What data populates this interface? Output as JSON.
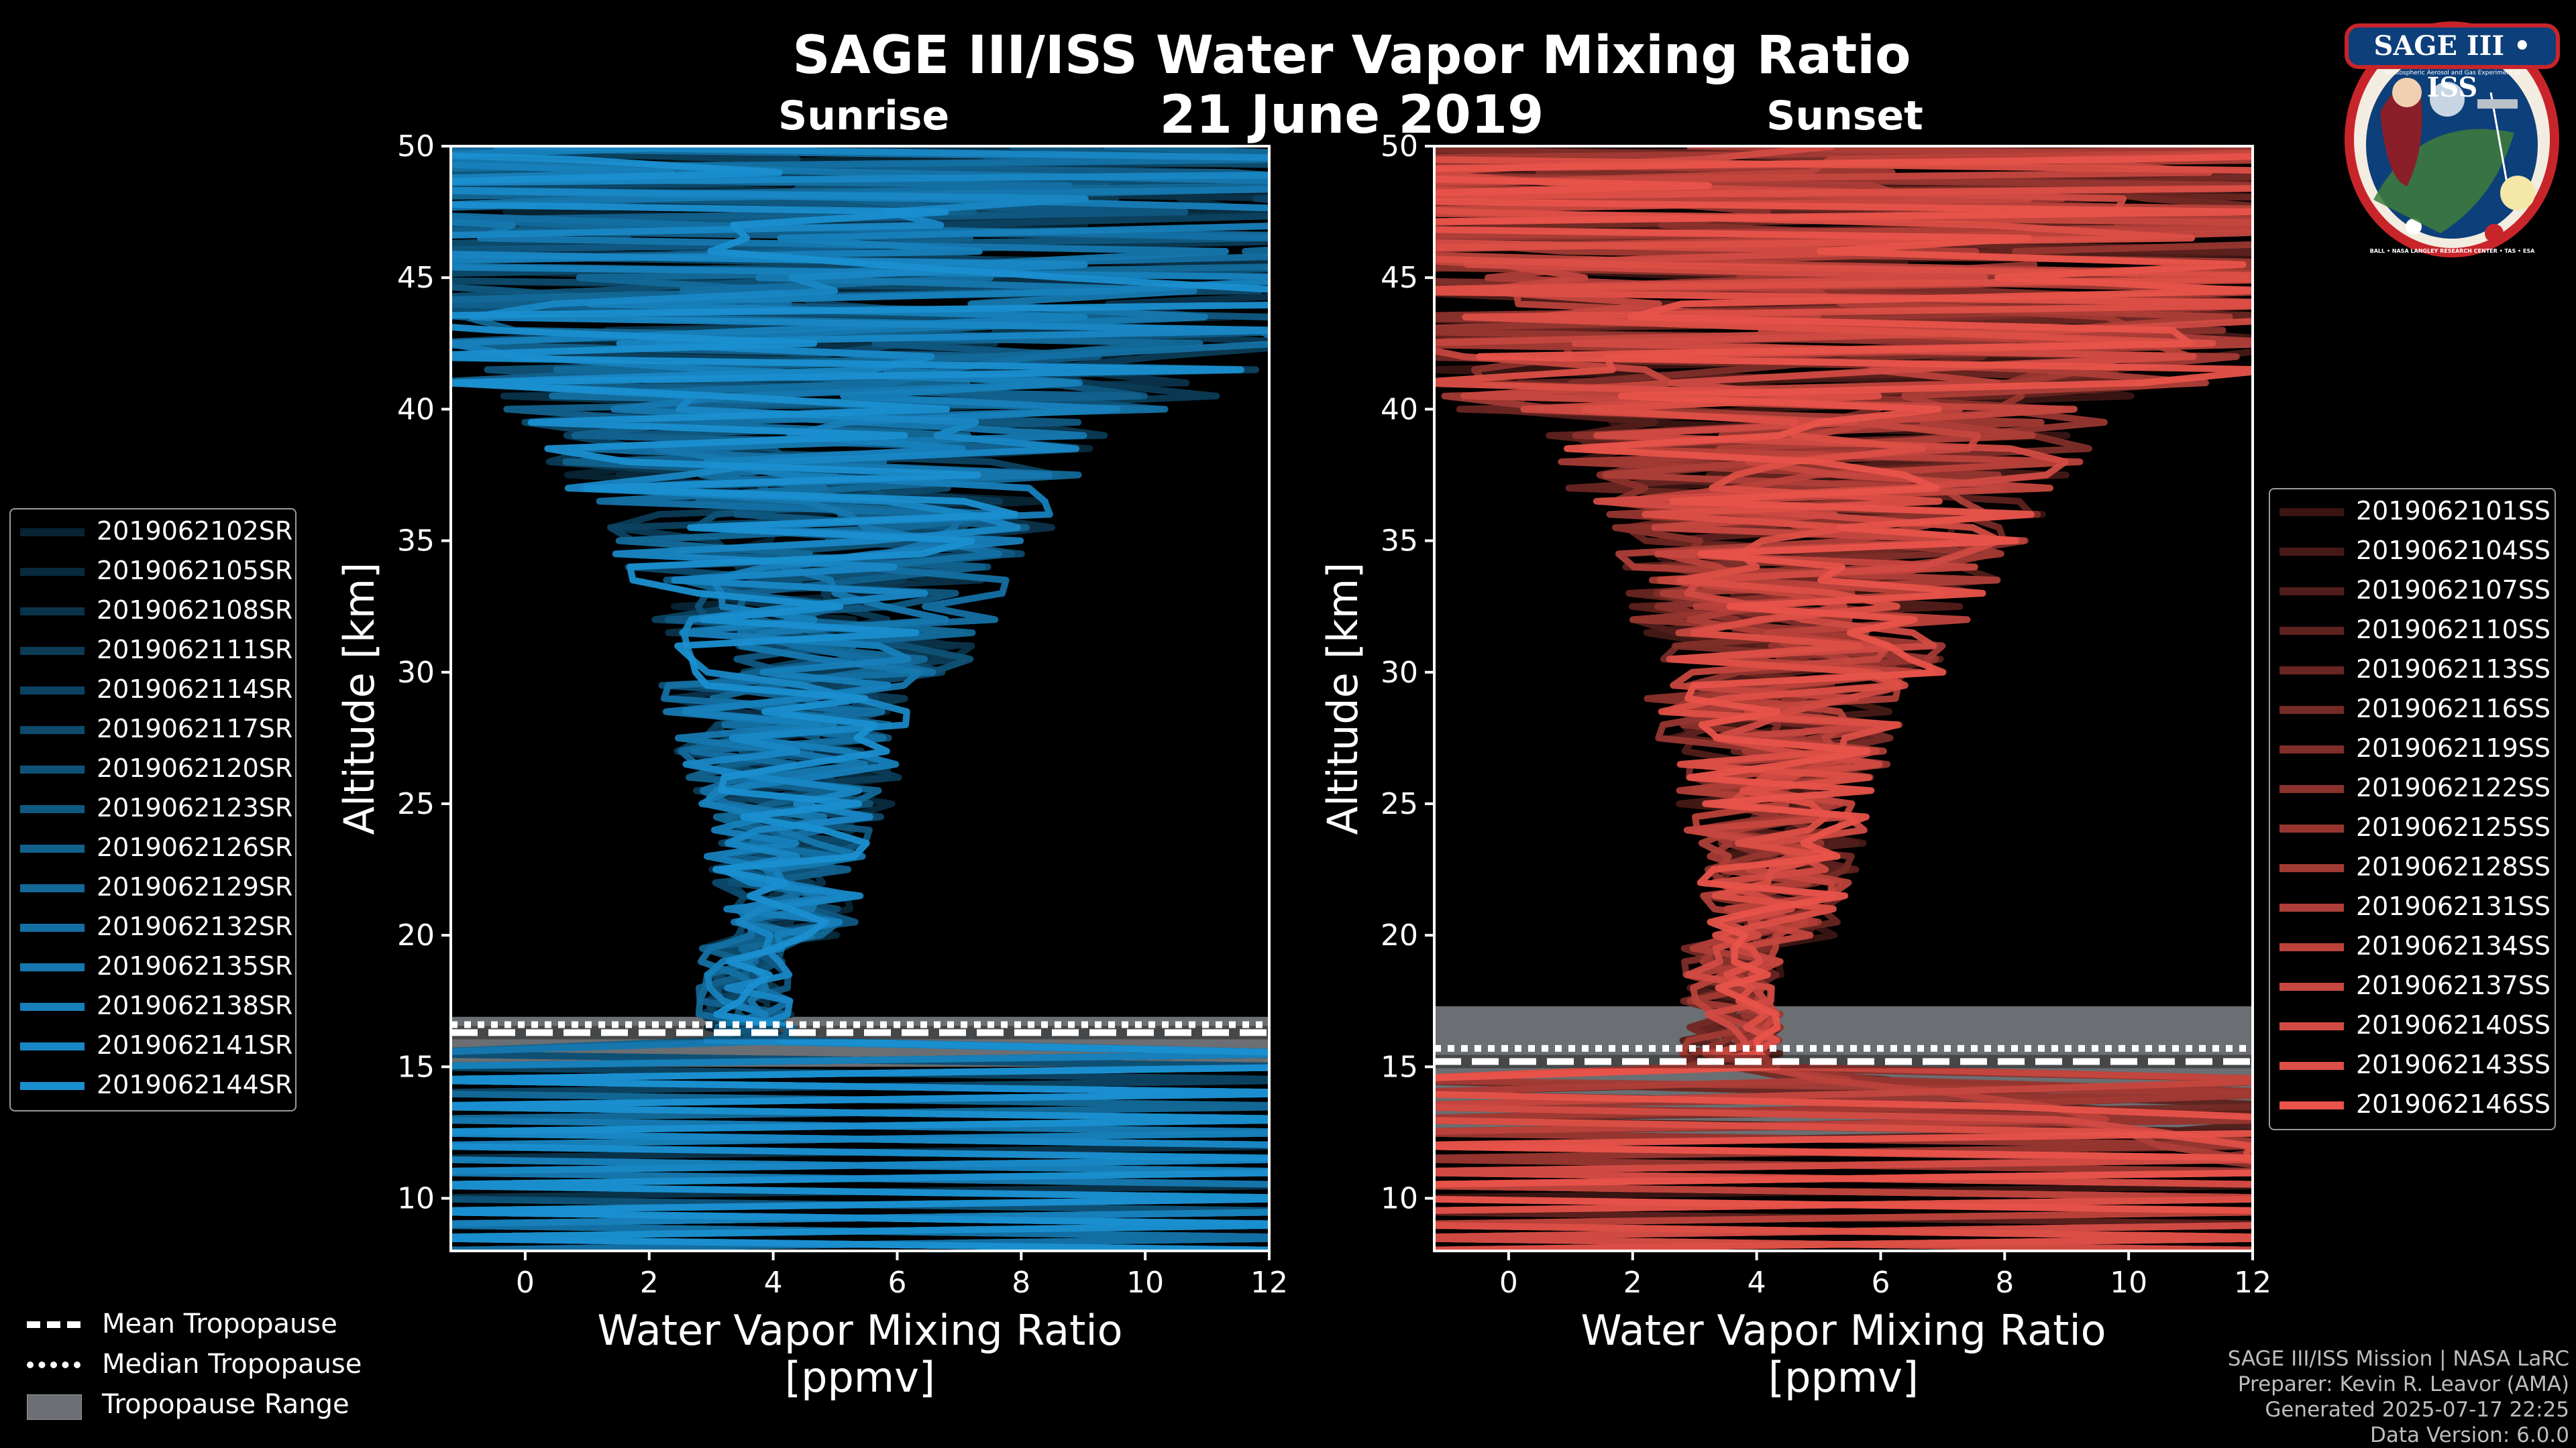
{
  "title": "SAGE III/ISS Water Vapor Mixing Ratio",
  "date": "21 June 2019",
  "panels": {
    "sunrise_label": "Sunrise",
    "sunset_label": "Sunset"
  },
  "logo": {
    "name": "SAGE III • ISS",
    "subtitle": "Stratospheric Aerosol and Gas Experiment III",
    "ring_text": "BALL • NASA LANGLEY RESEARCH CENTER • TAS • ESA"
  },
  "credits": {
    "line1": "SAGE III/ISS Mission | NASA LaRC",
    "line2": "Preparer: Kevin R. Leavor (AMA)",
    "line3": "Generated 2025-07-17 22:25",
    "line4": "Data Version: 6.0.0"
  },
  "tropopause_legend": {
    "mean": "Mean Tropopause",
    "median": "Median Tropopause",
    "range": "Tropopause Range"
  },
  "colors": {
    "sunrise": "#1a8fd0",
    "sunset": "#e8534a",
    "tropopause_range": "#6b6e72",
    "background": "#000000"
  },
  "chart_data": [
    {
      "type": "line",
      "panel": "Sunrise",
      "xlabel": "Water Vapor Mixing Ratio",
      "xunit": "[ppmv]",
      "ylabel": "Altitude [km]",
      "xlim": [
        -1.2,
        12
      ],
      "ylim": [
        8,
        50
      ],
      "xticks": [
        0,
        2,
        4,
        6,
        8,
        10,
        12
      ],
      "yticks": [
        10,
        15,
        20,
        25,
        30,
        35,
        40,
        45,
        50
      ],
      "tropopause": {
        "mean": 16.3,
        "median": 16.6,
        "range": [
          15.0,
          16.9
        ]
      },
      "series_names": [
        "2019062102SR",
        "2019062105SR",
        "2019062108SR",
        "2019062111SR",
        "2019062114SR",
        "2019062117SR",
        "2019062120SR",
        "2019062123SR",
        "2019062126SR",
        "2019062129SR",
        "2019062132SR",
        "2019062135SR",
        "2019062138SR",
        "2019062141SR",
        "2019062144SR"
      ]
    },
    {
      "type": "line",
      "panel": "Sunset",
      "xlabel": "Water Vapor Mixing Ratio",
      "xunit": "[ppmv]",
      "ylabel": "Altitude [km]",
      "xlim": [
        -1.2,
        12
      ],
      "ylim": [
        8,
        50
      ],
      "xticks": [
        0,
        2,
        4,
        6,
        8,
        10,
        12
      ],
      "yticks": [
        10,
        15,
        20,
        25,
        30,
        35,
        40,
        45,
        50
      ],
      "tropopause": {
        "mean": 15.2,
        "median": 15.7,
        "range": [
          12.4,
          17.3
        ]
      },
      "series_names": [
        "2019062101SS",
        "2019062104SS",
        "2019062107SS",
        "2019062110SS",
        "2019062113SS",
        "2019062116SS",
        "2019062119SS",
        "2019062122SS",
        "2019062125SS",
        "2019062128SS",
        "2019062131SS",
        "2019062134SS",
        "2019062137SS",
        "2019062140SS",
        "2019062143SS",
        "2019062146SS"
      ]
    }
  ]
}
